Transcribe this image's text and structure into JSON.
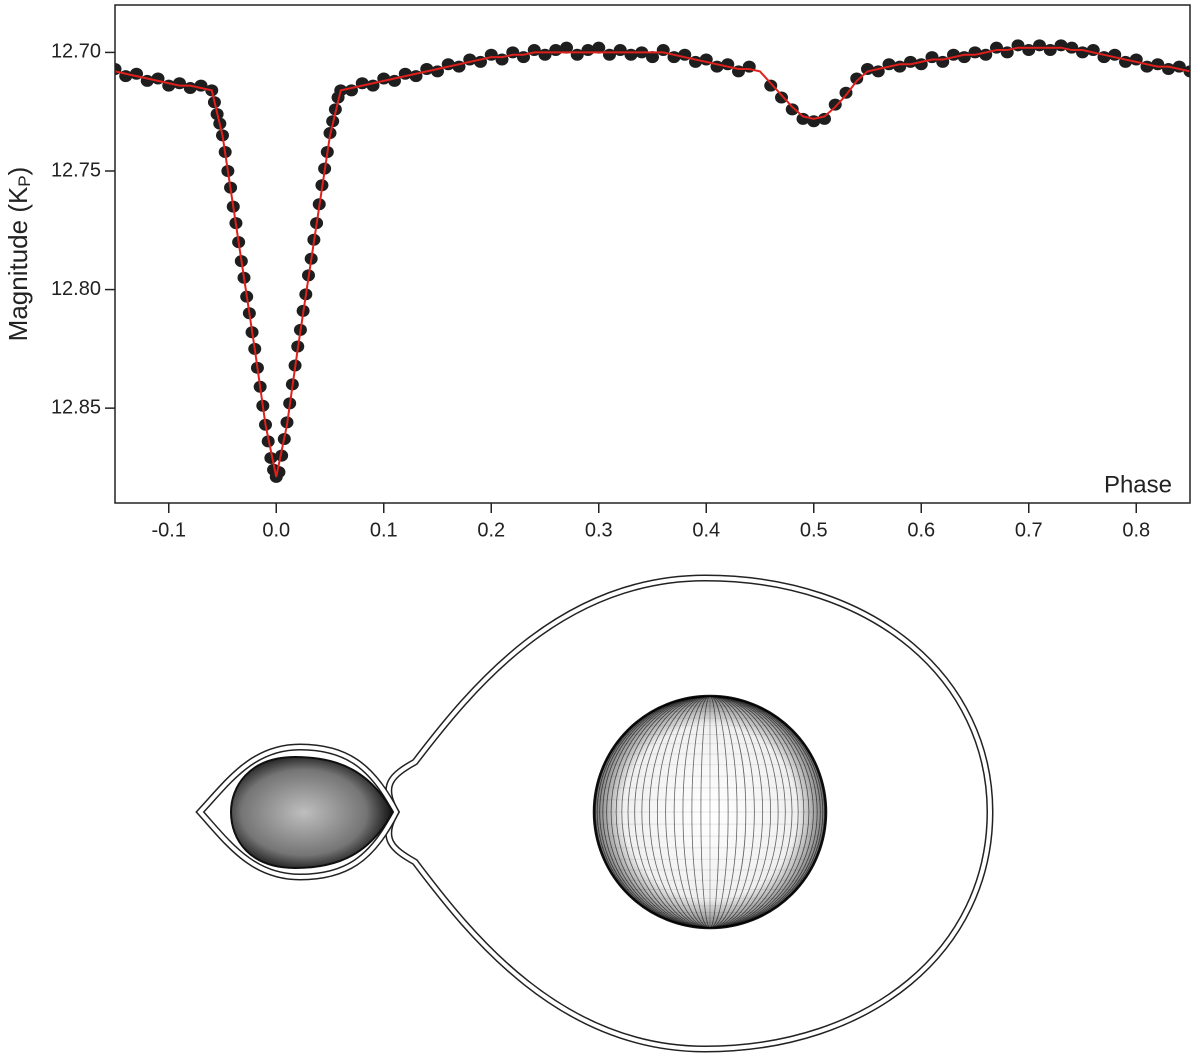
{
  "chart_data": {
    "type": "scatter",
    "ylabel": {
      "text": "Magnitude (K",
      "subscript": "P",
      "suffix": ")"
    },
    "xlabel": "Phase",
    "xlim": [
      -0.15,
      0.85
    ],
    "ylim": [
      12.68,
      12.89
    ],
    "y_inverted": true,
    "xticks": [
      -0.1,
      {
        "value": 0,
        "label": "0.0"
      },
      0.1,
      0.2,
      0.3,
      0.4,
      0.5,
      0.6,
      0.7,
      0.8
    ],
    "yticks": [
      {
        "value": 12.7,
        "label": "12.70"
      },
      {
        "value": 12.75,
        "label": "12.75"
      },
      {
        "value": 12.8,
        "label": "12.80"
      },
      {
        "value": 12.85,
        "label": "12.85"
      }
    ],
    "series": [
      {
        "mark": "dots",
        "color": "#1e1e1e",
        "x": [
          -0.15,
          -0.14,
          -0.13,
          -0.12,
          -0.11,
          -0.1,
          -0.09,
          -0.08,
          -0.07,
          -0.06,
          -0.0575,
          -0.055,
          -0.0525,
          -0.05,
          -0.0475,
          -0.045,
          -0.0425,
          -0.04,
          -0.0375,
          -0.035,
          -0.0325,
          -0.03,
          -0.0275,
          -0.025,
          -0.0225,
          -0.02,
          -0.0175,
          -0.015,
          -0.0125,
          -0.01,
          -0.0075,
          -0.005,
          -0.0025,
          0,
          0.0025,
          0.005,
          0.0075,
          0.01,
          0.0125,
          0.015,
          0.0175,
          0.02,
          0.0225,
          0.025,
          0.0275,
          0.03,
          0.0325,
          0.035,
          0.0375,
          0.04,
          0.0425,
          0.045,
          0.0475,
          0.05,
          0.0525,
          0.055,
          0.0575,
          0.06,
          0.07,
          0.08,
          0.09,
          0.1,
          0.11,
          0.12,
          0.13,
          0.14,
          0.15,
          0.16,
          0.17,
          0.18,
          0.19,
          0.2,
          0.21,
          0.22,
          0.23,
          0.24,
          0.25,
          0.26,
          0.27,
          0.28,
          0.29,
          0.3,
          0.31,
          0.32,
          0.33,
          0.34,
          0.35,
          0.36,
          0.37,
          0.38,
          0.39,
          0.4,
          0.41,
          0.42,
          0.43,
          0.44,
          0.45,
          0.46,
          0.47,
          0.48,
          0.49,
          0.5,
          0.51,
          0.52,
          0.53,
          0.54,
          0.55,
          0.56,
          0.57,
          0.58,
          0.59,
          0.6,
          0.61,
          0.62,
          0.63,
          0.64,
          0.65,
          0.66,
          0.67,
          0.68,
          0.69,
          0.7,
          0.71,
          0.72,
          0.73,
          0.74,
          0.75,
          0.76,
          0.77,
          0.78,
          0.79,
          0.8,
          0.81,
          0.82,
          0.83,
          0.84,
          0.85
        ],
        "values": [
          12.707,
          12.71,
          12.709,
          12.712,
          12.711,
          12.714,
          12.713,
          12.715,
          12.714,
          12.716,
          12.721,
          12.726,
          12.73,
          12.735,
          12.742,
          12.75,
          12.757,
          12.765,
          12.772,
          12.78,
          12.788,
          12.795,
          12.803,
          12.81,
          12.818,
          12.825,
          12.833,
          12.841,
          12.849,
          12.857,
          12.864,
          12.871,
          12.876,
          12.879,
          12.877,
          12.87,
          12.863,
          12.856,
          12.848,
          12.84,
          12.832,
          12.824,
          12.817,
          12.809,
          12.802,
          12.794,
          12.787,
          12.779,
          12.772,
          12.764,
          12.756,
          12.749,
          12.742,
          12.734,
          12.729,
          12.724,
          12.719,
          12.716,
          12.716,
          12.713,
          12.714,
          12.711,
          12.712,
          12.709,
          12.71,
          12.707,
          12.708,
          12.705,
          12.706,
          12.703,
          12.704,
          12.701,
          12.703,
          12.7,
          12.702,
          12.699,
          12.701,
          12.699,
          12.698,
          12.701,
          12.699,
          12.698,
          12.701,
          12.699,
          12.701,
          12.7,
          12.702,
          12.699,
          12.702,
          12.701,
          12.704,
          12.703,
          12.706,
          12.705,
          12.708,
          12.706,
          null,
          12.714,
          12.719,
          12.724,
          12.728,
          12.729,
          12.728,
          12.722,
          12.717,
          12.711,
          12.707,
          12.708,
          12.705,
          12.706,
          12.704,
          12.705,
          12.702,
          12.704,
          12.701,
          12.702,
          12.7,
          12.701,
          12.698,
          12.7,
          12.697,
          12.699,
          12.697,
          12.699,
          12.697,
          12.698,
          12.7,
          12.699,
          12.702,
          12.701,
          12.704,
          12.703,
          12.706,
          12.705,
          12.707,
          12.706,
          12.708
        ]
      },
      {
        "mark": "line",
        "color": "#e0201c",
        "x": [
          -0.15,
          -0.14,
          -0.13,
          -0.12,
          -0.11,
          -0.1,
          -0.09,
          -0.08,
          -0.07,
          -0.06,
          -0.05,
          -0.04,
          -0.03,
          -0.02,
          -0.01,
          0,
          0.01,
          0.02,
          0.03,
          0.04,
          0.05,
          0.06,
          0.07,
          0.08,
          0.09,
          0.1,
          0.11,
          0.12,
          0.13,
          0.14,
          0.15,
          0.16,
          0.17,
          0.18,
          0.19,
          0.2,
          0.21,
          0.22,
          0.23,
          0.24,
          0.25,
          0.26,
          0.27,
          0.28,
          0.29,
          0.3,
          0.31,
          0.32,
          0.33,
          0.34,
          0.35,
          0.36,
          0.37,
          0.38,
          0.39,
          0.4,
          0.41,
          0.42,
          0.43,
          0.44,
          0.45,
          0.46,
          0.47,
          0.48,
          0.49,
          0.5,
          0.51,
          0.52,
          0.53,
          0.54,
          0.55,
          0.56,
          0.57,
          0.58,
          0.59,
          0.6,
          0.61,
          0.62,
          0.63,
          0.64,
          0.65,
          0.66,
          0.67,
          0.68,
          0.69,
          0.7,
          0.71,
          0.72,
          0.73,
          0.74,
          0.75,
          0.76,
          0.77,
          0.78,
          0.79,
          0.8,
          0.81,
          0.82,
          0.83,
          0.84,
          0.85
        ],
        "values": [
          12.708,
          12.709,
          12.71,
          12.711,
          12.712,
          12.713,
          12.714,
          12.714,
          12.715,
          12.716,
          12.735,
          12.765,
          12.795,
          12.825,
          12.857,
          12.879,
          12.857,
          12.825,
          12.795,
          12.765,
          12.735,
          12.716,
          12.715,
          12.714,
          12.713,
          12.712,
          12.711,
          12.71,
          12.709,
          12.708,
          12.707,
          12.706,
          12.705,
          12.704,
          12.703,
          12.702,
          12.702,
          12.701,
          12.701,
          12.7,
          12.7,
          12.7,
          12.7,
          12.7,
          12.7,
          12.7,
          12.7,
          12.7,
          12.7,
          12.7,
          12.7,
          12.7,
          12.701,
          12.702,
          12.703,
          12.704,
          12.705,
          12.706,
          12.707,
          12.707,
          12.708,
          12.713,
          12.718,
          12.723,
          12.727,
          12.728,
          12.727,
          12.723,
          12.718,
          12.712,
          12.708,
          12.707,
          12.706,
          12.705,
          12.705,
          12.704,
          12.703,
          12.703,
          12.702,
          12.701,
          12.701,
          12.7,
          12.699,
          12.699,
          12.698,
          12.698,
          12.698,
          12.698,
          12.698,
          12.699,
          12.699,
          12.7,
          12.701,
          12.702,
          12.703,
          12.704,
          12.705,
          12.706,
          12.706,
          12.707,
          12.708
        ]
      }
    ]
  }
}
